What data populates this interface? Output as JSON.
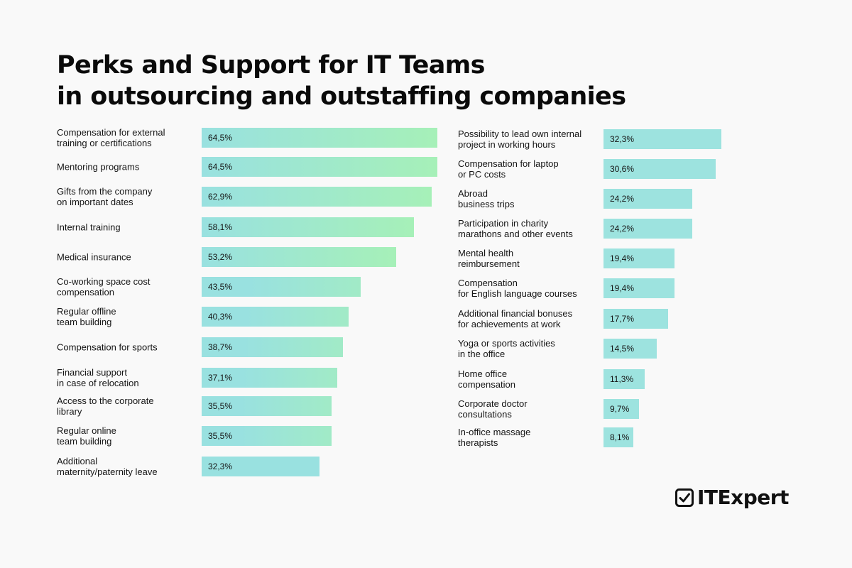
{
  "title": {
    "line1": "Perks and Support for IT Teams",
    "line2": "in outsourcing and outstaffing companies"
  },
  "brand": {
    "name": "ITExpert"
  },
  "colors": {
    "left_bar_start": "#99e1e0",
    "left_bar_end": "#a6f0b8",
    "right_bar": "#9de3df",
    "text": "#151515",
    "background": "#f9f9f9"
  },
  "chart_data": {
    "type": "bar",
    "orientation": "horizontal",
    "title": "Perks and Support for IT Teams in outsourcing and outstaffing companies",
    "unit": "%",
    "xlim": [
      0,
      64.5
    ],
    "groups": [
      {
        "name": "left",
        "items": [
          {
            "label": "Compensation for external\ntraining or certifications",
            "value": 64.5,
            "display": "64,5%"
          },
          {
            "label": "Mentoring programs",
            "value": 64.5,
            "display": "64,5%"
          },
          {
            "label": "Gifts from the company\non important dates",
            "value": 62.9,
            "display": "62,9%"
          },
          {
            "label": "Internal training",
            "value": 58.1,
            "display": "58,1%"
          },
          {
            "label": "Medical insurance",
            "value": 53.2,
            "display": "53,2%"
          },
          {
            "label": "Co-working space cost\ncompensation",
            "value": 43.5,
            "display": "43,5%"
          },
          {
            "label": "Regular offline\nteam building",
            "value": 40.3,
            "display": "40,3%"
          },
          {
            "label": "Compensation for sports",
            "value": 38.7,
            "display": "38,7%"
          },
          {
            "label": "Financial support\nin case of relocation",
            "value": 37.1,
            "display": "37,1%"
          },
          {
            "label": "Access to the corporate\nlibrary",
            "value": 35.5,
            "display": "35,5%"
          },
          {
            "label": "Regular online\nteam building",
            "value": 35.5,
            "display": "35,5%"
          },
          {
            "label": "Additional\nmaternity/paternity leave",
            "value": 32.3,
            "display": "32,3%"
          }
        ]
      },
      {
        "name": "right",
        "items": [
          {
            "label": "Possibility to lead own internal\nproject in working hours",
            "value": 32.3,
            "display": "32,3%"
          },
          {
            "label": "Compensation for laptop\nor PC costs",
            "value": 30.6,
            "display": "30,6%"
          },
          {
            "label": "Abroad\nbusiness trips",
            "value": 24.2,
            "display": "24,2%"
          },
          {
            "label": "Participation in charity\nmarathons and other events",
            "value": 24.2,
            "display": "24,2%"
          },
          {
            "label": "Mental health\nreimbursement",
            "value": 19.4,
            "display": "19,4%"
          },
          {
            "label": "Compensation\nfor English language courses",
            "value": 19.4,
            "display": "19,4%"
          },
          {
            "label": "Additional financial bonuses\nfor achievements at work",
            "value": 17.7,
            "display": "17,7%"
          },
          {
            "label": "Yoga or sports activities\nin the office",
            "value": 14.5,
            "display": "14,5%"
          },
          {
            "label": "Home office\ncompensation",
            "value": 11.3,
            "display": "11,3%"
          },
          {
            "label": "Corporate doctor\nconsultations",
            "value": 9.7,
            "display": "9,7%"
          },
          {
            "label": "In-office massage\ntherapists",
            "value": 8.1,
            "display": "8,1%"
          }
        ]
      }
    ]
  }
}
